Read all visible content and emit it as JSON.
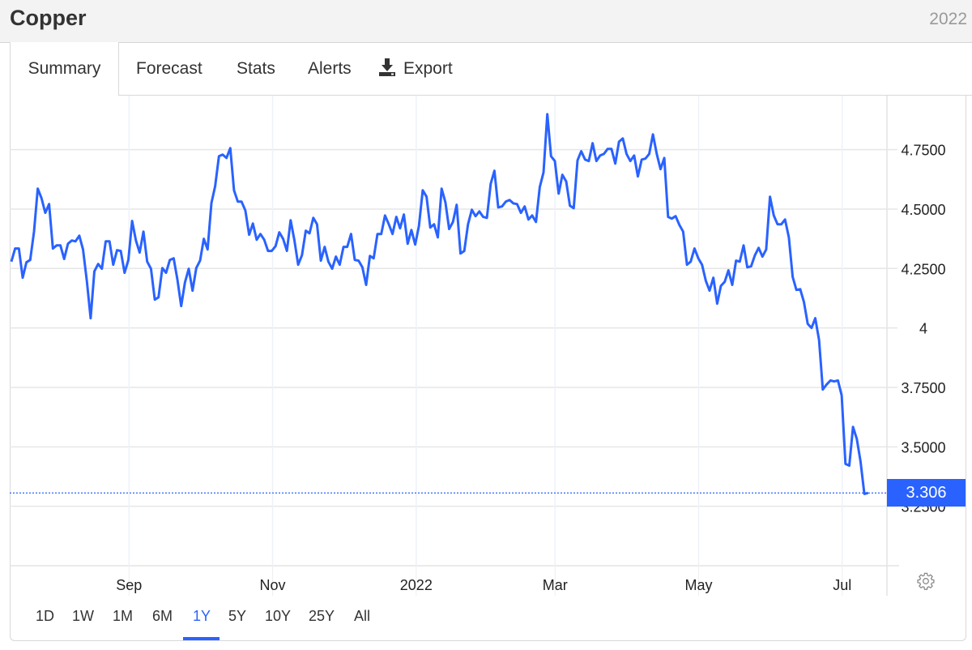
{
  "header": {
    "title": "Copper",
    "year": "2022"
  },
  "tabs": [
    {
      "label": "Summary",
      "active": true
    },
    {
      "label": "Forecast"
    },
    {
      "label": "Stats"
    },
    {
      "label": "Alerts"
    },
    {
      "label": "Export",
      "icon": "download-icon"
    }
  ],
  "ranges": [
    {
      "label": "1D"
    },
    {
      "label": "1W"
    },
    {
      "label": "1M"
    },
    {
      "label": "6M"
    },
    {
      "label": "1Y",
      "active": true
    },
    {
      "label": "5Y"
    },
    {
      "label": "10Y"
    },
    {
      "label": "25Y"
    },
    {
      "label": "All"
    }
  ],
  "settings_icon": "gear-icon",
  "colors": {
    "line": "#2962ff",
    "accent": "#2962ff",
    "grid": "#e6e6e6"
  },
  "chart_data": {
    "type": "line",
    "title": "",
    "xlabel": "",
    "ylabel": "",
    "x_range": [
      "2021-07-13",
      "2022-07-20"
    ],
    "data_dates": [
      "2021-07-13",
      "2022-07-12"
    ],
    "ylim": [
      3.0,
      4.977
    ],
    "grid": true,
    "legend": "none",
    "x_ticks": [
      {
        "date": "2021-09-01",
        "label": "Sep"
      },
      {
        "date": "2021-11-01",
        "label": "Nov"
      },
      {
        "date": "2022-01-01",
        "label": "2022"
      },
      {
        "date": "2022-03-01",
        "label": "Mar"
      },
      {
        "date": "2022-05-01",
        "label": "May"
      },
      {
        "date": "2022-07-01",
        "label": "Jul"
      }
    ],
    "y_ticks": [
      {
        "value": 4.75,
        "label": "4.7500"
      },
      {
        "value": 4.5,
        "label": "4.5000"
      },
      {
        "value": 4.25,
        "label": "4.2500"
      },
      {
        "value": 4.0,
        "label": "4"
      },
      {
        "value": 3.75,
        "label": "3.7500"
      },
      {
        "value": 3.5,
        "label": "3.5000"
      },
      {
        "value": 3.25,
        "label": "3.2500"
      }
    ],
    "last_value": "3.306",
    "values": [
      4.279,
      4.334,
      4.334,
      4.211,
      4.276,
      4.286,
      4.405,
      4.586,
      4.545,
      4.484,
      4.521,
      4.334,
      4.347,
      4.347,
      4.29,
      4.354,
      4.368,
      4.364,
      4.388,
      4.33,
      4.198,
      4.041,
      4.238,
      4.269,
      4.249,
      4.364,
      4.364,
      4.266,
      4.327,
      4.324,
      4.232,
      4.286,
      4.45,
      4.368,
      4.317,
      4.405,
      4.279,
      4.249,
      4.119,
      4.129,
      4.252,
      4.232,
      4.286,
      4.293,
      4.204,
      4.092,
      4.191,
      4.249,
      4.157,
      4.252,
      4.283,
      4.375,
      4.33,
      4.525,
      4.596,
      4.722,
      4.729,
      4.715,
      4.756,
      4.579,
      4.531,
      4.531,
      4.494,
      4.392,
      4.439,
      4.371,
      4.395,
      4.371,
      4.324,
      4.324,
      4.344,
      4.402,
      4.375,
      4.324,
      4.453,
      4.368,
      4.266,
      4.306,
      4.409,
      4.398,
      4.463,
      4.436,
      4.283,
      4.341,
      4.279,
      4.249,
      4.3,
      4.266,
      4.341,
      4.341,
      4.395,
      4.286,
      4.283,
      4.255,
      4.181,
      4.303,
      4.293,
      4.395,
      4.395,
      4.473,
      4.436,
      4.395,
      4.467,
      4.419,
      4.477,
      4.354,
      4.412,
      4.351,
      4.429,
      4.579,
      4.552,
      4.422,
      4.436,
      4.381,
      4.586,
      4.528,
      4.416,
      4.446,
      4.518,
      4.313,
      4.324,
      4.436,
      4.497,
      4.47,
      4.49,
      4.467,
      4.463,
      4.606,
      4.661,
      4.507,
      4.511,
      4.531,
      4.538,
      4.524,
      4.521,
      4.484,
      4.511,
      4.456,
      4.473,
      4.446,
      4.593,
      4.654,
      4.899,
      4.722,
      4.702,
      4.565,
      4.644,
      4.616,
      4.514,
      4.504,
      4.705,
      4.743,
      4.708,
      4.702,
      4.777,
      4.702,
      4.725,
      4.732,
      4.753,
      4.753,
      4.691,
      4.783,
      4.797,
      4.732,
      4.702,
      4.725,
      4.637,
      4.708,
      4.712,
      4.732,
      4.814,
      4.732,
      4.668,
      4.715,
      4.467,
      4.46,
      4.47,
      4.433,
      4.405,
      4.266,
      4.279,
      4.334,
      4.293,
      4.266,
      4.198,
      4.157,
      4.211,
      4.102,
      4.177,
      4.194,
      4.242,
      4.181,
      4.283,
      4.279,
      4.347,
      4.255,
      4.259,
      4.306,
      4.337,
      4.3,
      4.33,
      4.552,
      4.473,
      4.436,
      4.436,
      4.456,
      4.381,
      4.215,
      4.16,
      4.163,
      4.109,
      4.017,
      4.0,
      4.041,
      3.949,
      3.741,
      3.762,
      3.779,
      3.775,
      3.779,
      3.717,
      3.428,
      3.421,
      3.584,
      3.533,
      3.438,
      3.302,
      3.306
    ]
  }
}
